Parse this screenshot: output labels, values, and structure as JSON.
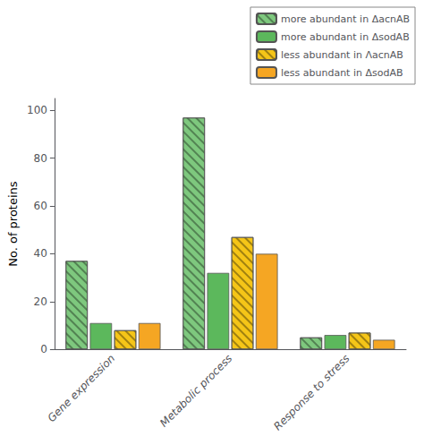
{
  "chart_data": {
    "type": "bar",
    "categories": [
      "Gene expression",
      "Metabolic process",
      "Response to stress"
    ],
    "series": [
      {
        "name": "more abundant in ΔacnAB",
        "color": "#7ec87e",
        "values": [
          37,
          97,
          5
        ]
      },
      {
        "name": "more abundant in ΔsodAB",
        "color": "#5cb85c",
        "values": [
          11,
          32,
          6
        ]
      },
      {
        "name": "less abundant in ΛacnAB",
        "color": "#f5c518",
        "values": [
          8,
          47,
          7
        ]
      },
      {
        "name": "less abundant in ΔsodAB",
        "color": "#f5a623",
        "values": [
          11,
          40,
          4
        ]
      }
    ],
    "ylabel": "No. of proteins",
    "ylim": [
      0,
      105
    ],
    "yticks": [
      0,
      20,
      40,
      60,
      80,
      100
    ],
    "grid": false,
    "legend": "upper right"
  }
}
